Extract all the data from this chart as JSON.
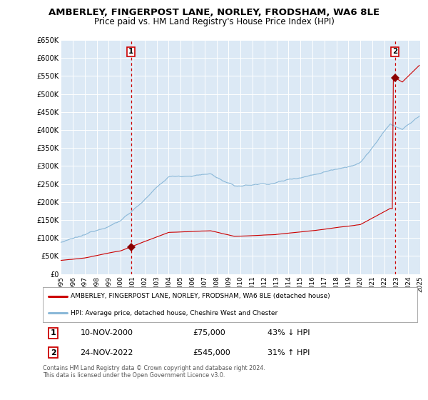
{
  "title": "AMBERLEY, FINGERPOST LANE, NORLEY, FRODSHAM, WA6 8LE",
  "subtitle": "Price paid vs. HM Land Registry's House Price Index (HPI)",
  "title_fontsize": 9.5,
  "subtitle_fontsize": 8.5,
  "ylim": [
    0,
    650000
  ],
  "yticks": [
    0,
    50000,
    100000,
    150000,
    200000,
    250000,
    300000,
    350000,
    400000,
    450000,
    500000,
    550000,
    600000,
    650000
  ],
  "ytick_labels": [
    "£0",
    "£50K",
    "£100K",
    "£150K",
    "£200K",
    "£250K",
    "£300K",
    "£350K",
    "£400K",
    "£450K",
    "£500K",
    "£550K",
    "£600K",
    "£650K"
  ],
  "xmin_year": 1995,
  "xmax_year": 2025,
  "xtick_years": [
    1995,
    1996,
    1997,
    1998,
    1999,
    2000,
    2001,
    2002,
    2003,
    2004,
    2005,
    2006,
    2007,
    2008,
    2009,
    2010,
    2011,
    2012,
    2013,
    2014,
    2015,
    2016,
    2017,
    2018,
    2019,
    2020,
    2021,
    2022,
    2023,
    2024,
    2025
  ],
  "bg_color": "#dce9f5",
  "grid_color": "#ffffff",
  "sale1_year": 2000.86,
  "sale1_price": 75000,
  "sale1_label": "1",
  "sale2_year": 2022.9,
  "sale2_price": 545000,
  "sale2_label": "2",
  "red_line_color": "#cc0000",
  "blue_line_color": "#8ab8d8",
  "marker_color": "#8b0000",
  "dashed_line_color": "#cc0000",
  "legend_label_red": "AMBERLEY, FINGERPOST LANE, NORLEY, FRODSHAM, WA6 8LE (detached house)",
  "legend_label_blue": "HPI: Average price, detached house, Cheshire West and Chester",
  "table_row1_num": "1",
  "table_row1_date": "10-NOV-2000",
  "table_row1_price": "£75,000",
  "table_row1_hpi": "43% ↓ HPI",
  "table_row2_num": "2",
  "table_row2_date": "24-NOV-2022",
  "table_row2_price": "£545,000",
  "table_row2_hpi": "31% ↑ HPI",
  "footer": "Contains HM Land Registry data © Crown copyright and database right 2024.\nThis data is licensed under the Open Government Licence v3.0."
}
